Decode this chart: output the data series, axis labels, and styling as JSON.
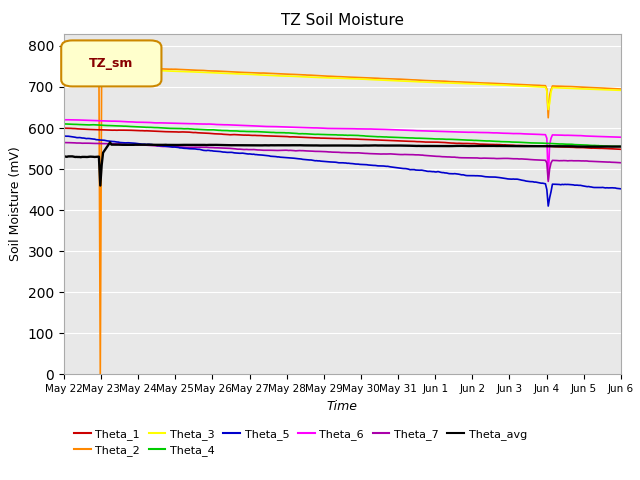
{
  "title": "TZ Soil Moisture",
  "ylabel": "Soil Moisture (mV)",
  "xlabel": "Time",
  "ylim": [
    0,
    830
  ],
  "yticks": [
    0,
    100,
    200,
    300,
    400,
    500,
    600,
    700,
    800
  ],
  "bg_color": "#e8e8e8",
  "legend_label": "TZ_sm",
  "x_tick_labels": [
    "May 22",
    "May 23",
    "May 24",
    "May 25",
    "May 26",
    "May 27",
    "May 28",
    "May 29",
    "May 30",
    "May 31",
    "Jun 1",
    "Jun 2",
    "Jun 3",
    "Jun 4",
    "Jun 5",
    "Jun 6"
  ],
  "series_colors": {
    "Theta_1": "#cc0000",
    "Theta_2": "#ff8800",
    "Theta_3": "#ffff00",
    "Theta_4": "#00cc00",
    "Theta_5": "#0000cc",
    "Theta_6": "#ff00ff",
    "Theta_7": "#aa00aa",
    "Theta_avg": "#000000"
  },
  "n_points": 400,
  "figsize": [
    6.4,
    4.8
  ],
  "dpi": 100
}
